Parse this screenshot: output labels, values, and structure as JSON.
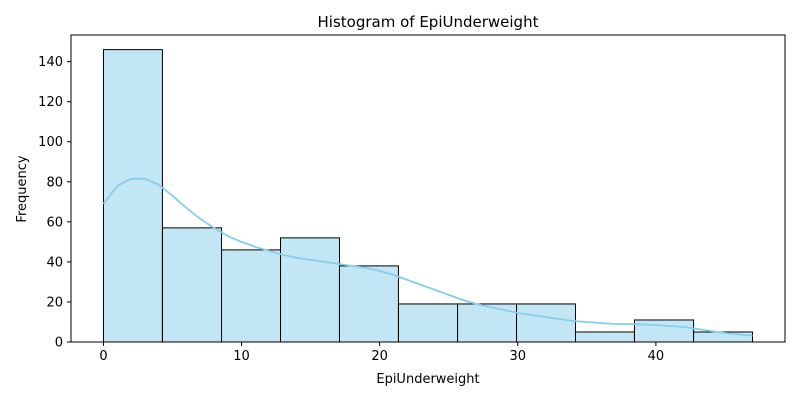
{
  "chart_data": {
    "type": "bar",
    "title": "Histogram of EpiUnderweight",
    "xlabel": "EpiUnderweight",
    "ylabel": "Frequency",
    "xlim": [
      -2.35,
      49.35
    ],
    "ylim": [
      0,
      153.3
    ],
    "xticks": [
      0,
      10,
      20,
      30,
      40
    ],
    "yticks": [
      0,
      20,
      40,
      60,
      80,
      100,
      120,
      140
    ],
    "grid": false,
    "bins": [
      {
        "x0": 0.0,
        "x1": 4.27,
        "count": 146
      },
      {
        "x0": 4.27,
        "x1": 8.55,
        "count": 57
      },
      {
        "x0": 8.55,
        "x1": 12.82,
        "count": 46
      },
      {
        "x0": 12.82,
        "x1": 17.09,
        "count": 52
      },
      {
        "x0": 17.09,
        "x1": 21.36,
        "count": 38
      },
      {
        "x0": 21.36,
        "x1": 25.64,
        "count": 19
      },
      {
        "x0": 25.64,
        "x1": 29.91,
        "count": 19
      },
      {
        "x0": 29.91,
        "x1": 34.18,
        "count": 19
      },
      {
        "x0": 34.18,
        "x1": 38.45,
        "count": 5
      },
      {
        "x0": 38.45,
        "x1": 42.73,
        "count": 11
      },
      {
        "x0": 42.73,
        "x1": 47.0,
        "count": 5
      }
    ],
    "kde": [
      [
        0,
        69
      ],
      [
        1,
        78
      ],
      [
        2,
        81.5
      ],
      [
        3,
        81.5
      ],
      [
        4,
        78.5
      ],
      [
        5,
        73
      ],
      [
        6,
        67
      ],
      [
        7,
        61.5
      ],
      [
        8,
        57
      ],
      [
        9,
        53
      ],
      [
        10,
        50
      ],
      [
        11,
        47.5
      ],
      [
        12,
        45.5
      ],
      [
        13,
        43.5
      ],
      [
        14,
        42
      ],
      [
        15,
        41
      ],
      [
        16,
        40
      ],
      [
        17,
        39
      ],
      [
        18,
        38
      ],
      [
        19,
        37
      ],
      [
        20,
        35.5
      ],
      [
        21,
        33.5
      ],
      [
        22,
        31
      ],
      [
        23,
        28.5
      ],
      [
        24,
        26
      ],
      [
        25,
        23.5
      ],
      [
        26,
        21
      ],
      [
        27,
        19
      ],
      [
        28,
        17.5
      ],
      [
        29,
        16
      ],
      [
        30,
        14.5
      ],
      [
        31,
        13.5
      ],
      [
        32,
        12.5
      ],
      [
        33,
        11.5
      ],
      [
        34,
        10.5
      ],
      [
        35,
        10
      ],
      [
        36,
        9.5
      ],
      [
        37,
        9
      ],
      [
        38,
        9
      ],
      [
        39,
        8.8
      ],
      [
        40,
        8.5
      ],
      [
        41,
        8
      ],
      [
        42,
        7.5
      ],
      [
        43,
        6.5
      ],
      [
        44,
        5.5
      ],
      [
        45,
        4.5
      ],
      [
        46,
        3.8
      ],
      [
        47,
        3.2
      ]
    ],
    "colors": {
      "bar_fill": "#87ceeb",
      "bar_fill_opacity": 0.5,
      "bar_edge": "#000000",
      "kde_line": "#87ceeb"
    }
  }
}
